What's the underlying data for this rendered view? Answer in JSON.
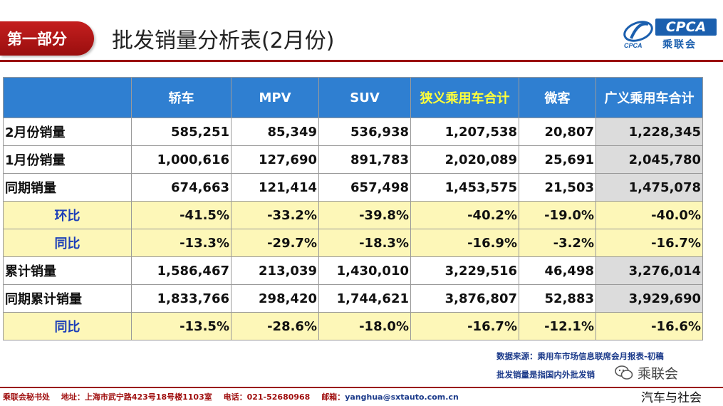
{
  "header": {
    "section": "第一部分",
    "title": "批发销量分析表(2月份)",
    "logo_text": "CPCA",
    "logo_cn": "乘联会",
    "logo_small": "CPCA"
  },
  "colors": {
    "accent": "#9a0e0e",
    "table_header": "#2f7fd1",
    "highlight_text": "#ffff3a",
    "ratio_row": "#fdf7b8",
    "total_col": "#dcdcdc"
  },
  "table": {
    "columns": [
      "",
      "轿车",
      "MPV",
      "SUV",
      "狭义乘用车合计",
      "微客",
      "广义乘用车合计"
    ],
    "rows": [
      {
        "label": "2月份销量",
        "type": "volume",
        "values": [
          "585,251",
          "85,349",
          "536,938",
          "1,207,538",
          "20,807",
          "1,228,345"
        ]
      },
      {
        "label": "1月份销量",
        "type": "volume",
        "values": [
          "1,000,616",
          "127,690",
          "891,783",
          "2,020,089",
          "25,691",
          "2,045,780"
        ]
      },
      {
        "label": "同期销量",
        "type": "volume",
        "values": [
          "674,663",
          "121,414",
          "657,498",
          "1,453,575",
          "21,503",
          "1,475,078"
        ]
      },
      {
        "label": "环比",
        "type": "ratio",
        "values": [
          "-41.5%",
          "-33.2%",
          "-39.8%",
          "-40.2%",
          "-19.0%",
          "-40.0%"
        ]
      },
      {
        "label": "同比",
        "type": "ratio",
        "values": [
          "-13.3%",
          "-29.7%",
          "-18.3%",
          "-16.9%",
          "-3.2%",
          "-16.7%"
        ]
      },
      {
        "label": "累计销量",
        "type": "volume",
        "values": [
          "1,586,467",
          "213,039",
          "1,430,010",
          "3,229,516",
          "46,498",
          "3,276,014"
        ]
      },
      {
        "label": "同期累计销量",
        "type": "volume",
        "values": [
          "1,833,766",
          "298,420",
          "1,744,621",
          "3,876,807",
          "52,883",
          "3,929,690"
        ]
      },
      {
        "label": "同比",
        "type": "ratio",
        "values": [
          "-13.5%",
          "-28.6%",
          "-18.0%",
          "-16.7%",
          "-12.1%",
          "-16.6%"
        ]
      }
    ]
  },
  "notes": {
    "source": "数据来源：乘用车市场信息联席会月报表-初稿",
    "definition": "批发销量是指国内外批发销"
  },
  "wechat": {
    "icon": "wechat-icon",
    "name": "乘联会"
  },
  "footer": {
    "org": "乘联会秘书处",
    "address": "地址：上海市武宁路423号18号楼1103室",
    "phone": "电话：021-52680968",
    "email_label": "邮箱：",
    "email": "yanghua@sxtauto.com.cn"
  },
  "brand_bottom": "汽车与社会"
}
